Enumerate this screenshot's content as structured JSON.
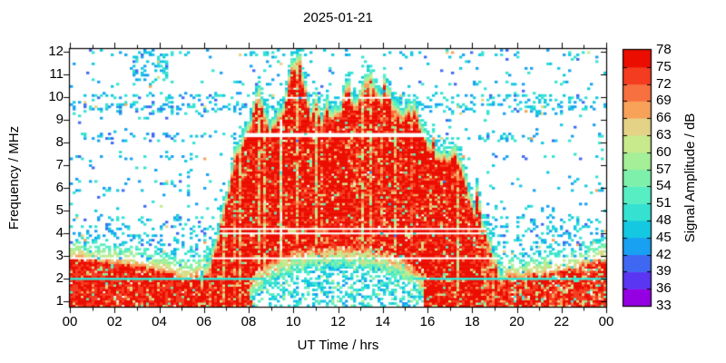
{
  "chart_data": {
    "type": "heatmap",
    "title": "2025-01-21",
    "xlabel": "UT Time / hrs",
    "ylabel": "Frequency / MHz",
    "colorbar_label": "Signal Amplitude / dB",
    "x_range_hours": [
      0,
      24
    ],
    "x_tick_labels": [
      "00",
      "02",
      "04",
      "06",
      "08",
      "10",
      "12",
      "14",
      "16",
      "18",
      "20",
      "22",
      "00"
    ],
    "y_range_mhz": [
      0.75,
      12.1
    ],
    "y_tick_values": [
      1,
      2,
      3,
      4,
      5,
      6,
      7,
      8,
      9,
      10,
      11,
      12
    ],
    "y_tick_labels": [
      "1",
      "2",
      "3",
      "4",
      "5",
      "6",
      "7",
      "8",
      "9",
      "10",
      "11",
      "12"
    ],
    "colorbar_tick_labels": [
      "78",
      "75",
      "72",
      "69",
      "66",
      "63",
      "60",
      "57",
      "54",
      "51",
      "48",
      "45",
      "42",
      "39",
      "36",
      "33"
    ],
    "colorbar_range_db": [
      33,
      78
    ],
    "colorbar_step_db": 3,
    "colorbar_colors": [
      "#9400e2",
      "#5a35f2",
      "#3f68f2",
      "#18a0f2",
      "#14c8e2",
      "#35e2d2",
      "#57eec4",
      "#7ff0ab",
      "#a4ef97",
      "#c8e98c",
      "#e4d386",
      "#f7a159",
      "#f7703f",
      "#f43c20",
      "#eb0d00"
    ],
    "grid": false,
    "legend_position": "right-colorbar",
    "day_envelope": [
      [
        5.85,
        1.8
      ],
      [
        6.0,
        2.6
      ],
      [
        6.5,
        3.6
      ],
      [
        7.0,
        6.2
      ],
      [
        7.5,
        8.0
      ],
      [
        8.0,
        8.7
      ],
      [
        8.3,
        10.1
      ],
      [
        8.5,
        10.5
      ],
      [
        8.8,
        9.3
      ],
      [
        9.0,
        8.9
      ],
      [
        9.3,
        9.4
      ],
      [
        9.6,
        9.7
      ],
      [
        9.8,
        10.8
      ],
      [
        10.0,
        11.6
      ],
      [
        10.3,
        12.0
      ],
      [
        10.5,
        10.8
      ],
      [
        10.8,
        9.5
      ],
      [
        11.0,
        10.7
      ],
      [
        11.3,
        9.3
      ],
      [
        11.5,
        10.3
      ],
      [
        11.8,
        9.6
      ],
      [
        12.0,
        9.4
      ],
      [
        12.3,
        10.3
      ],
      [
        12.5,
        10.4
      ],
      [
        12.8,
        9.7
      ],
      [
        13.0,
        10.2
      ],
      [
        13.3,
        10.7
      ],
      [
        13.5,
        11.1
      ],
      [
        13.8,
        10.4
      ],
      [
        14.0,
        10.3
      ],
      [
        14.3,
        10.6
      ],
      [
        14.5,
        9.9
      ],
      [
        14.8,
        9.4
      ],
      [
        15.0,
        9.3
      ],
      [
        15.3,
        9.6
      ],
      [
        15.5,
        9.7
      ],
      [
        15.8,
        9.0
      ],
      [
        16.0,
        8.6
      ],
      [
        16.3,
        7.8
      ],
      [
        16.5,
        7.7
      ],
      [
        17.0,
        7.7
      ],
      [
        17.5,
        7.3
      ],
      [
        18.0,
        5.8
      ],
      [
        18.3,
        5.0
      ],
      [
        18.5,
        4.4
      ],
      [
        19.0,
        2.9
      ],
      [
        19.3,
        2.3
      ]
    ],
    "day_absorption": [
      [
        7.6,
        0.3
      ],
      [
        8.0,
        1.0
      ],
      [
        8.5,
        1.5
      ],
      [
        9.0,
        1.95
      ],
      [
        9.5,
        2.15
      ],
      [
        10.0,
        2.3
      ],
      [
        11.0,
        2.45
      ],
      [
        12.0,
        2.5
      ],
      [
        13.0,
        2.45
      ],
      [
        14.0,
        2.3
      ],
      [
        14.5,
        2.15
      ],
      [
        15.0,
        1.95
      ],
      [
        15.5,
        1.5
      ],
      [
        15.9,
        0.9
      ],
      [
        16.2,
        0.3
      ]
    ],
    "night_band": [
      [
        0,
        2.85
      ],
      [
        1,
        2.8
      ],
      [
        2,
        2.65
      ],
      [
        3,
        2.5
      ],
      [
        4,
        2.3
      ],
      [
        5,
        2.05
      ],
      [
        5.5,
        2.0
      ],
      [
        6,
        2.3
      ],
      [
        7,
        3.0
      ],
      [
        7.6,
        2.2
      ],
      [
        8.3,
        0.5
      ],
      [
        15.7,
        0.5
      ],
      [
        16.2,
        1.5
      ],
      [
        17,
        2.2
      ],
      [
        18,
        2.6
      ],
      [
        18.8,
        2.3
      ],
      [
        19.3,
        2.0
      ],
      [
        20,
        2.05
      ],
      [
        21,
        2.15
      ],
      [
        22,
        2.3
      ],
      [
        23,
        2.55
      ],
      [
        24,
        2.85
      ]
    ],
    "gap_lines": [
      {
        "f": [
          8.22,
          8.42
        ],
        "amp": 0
      },
      {
        "f": [
          9.92,
          10.01
        ],
        "amp": 0
      },
      {
        "f": [
          6.18,
          6.27
        ],
        "amp": 0
      },
      {
        "f": [
          5.78,
          5.87
        ],
        "amp": 0
      },
      {
        "f": [
          4.14,
          4.23
        ],
        "amp": 0
      },
      {
        "f": [
          3.94,
          4.03
        ],
        "amp": 0
      },
      {
        "f": [
          2.85,
          2.94
        ],
        "amp": 0
      },
      {
        "f": [
          1.94,
          2.04
        ],
        "amp": 48
      }
    ],
    "speckle_rows": [
      [
        9.98,
        0.22
      ],
      [
        9.72,
        0.2
      ],
      [
        9.5,
        0.26
      ],
      [
        9.28,
        0.12
      ],
      [
        8.36,
        0.2
      ],
      [
        8.12,
        0.1
      ],
      [
        7.3,
        0.09
      ],
      [
        6.2,
        0.08
      ],
      [
        5.9,
        0.07
      ],
      [
        5.15,
        0.07
      ],
      [
        4.65,
        0.09
      ],
      [
        4.25,
        0.11
      ],
      [
        3.85,
        0.11
      ],
      [
        3.5,
        0.13
      ],
      [
        3.2,
        0.15
      ],
      [
        2.95,
        0.16
      ],
      [
        2.6,
        0.13
      ],
      [
        11.9,
        0.1
      ],
      [
        11.2,
        0.04
      ],
      [
        10.6,
        0.05
      ]
    ],
    "speckle_patches": [
      {
        "t": [
          2.7,
          4.35
        ],
        "f": [
          10.7,
          12.05
        ],
        "p": 0.28
      },
      {
        "t": [
          8.8,
          9.6
        ],
        "f": [
          11.3,
          12.05
        ],
        "p": 0.12
      }
    ],
    "noise_seed": 1337
  }
}
